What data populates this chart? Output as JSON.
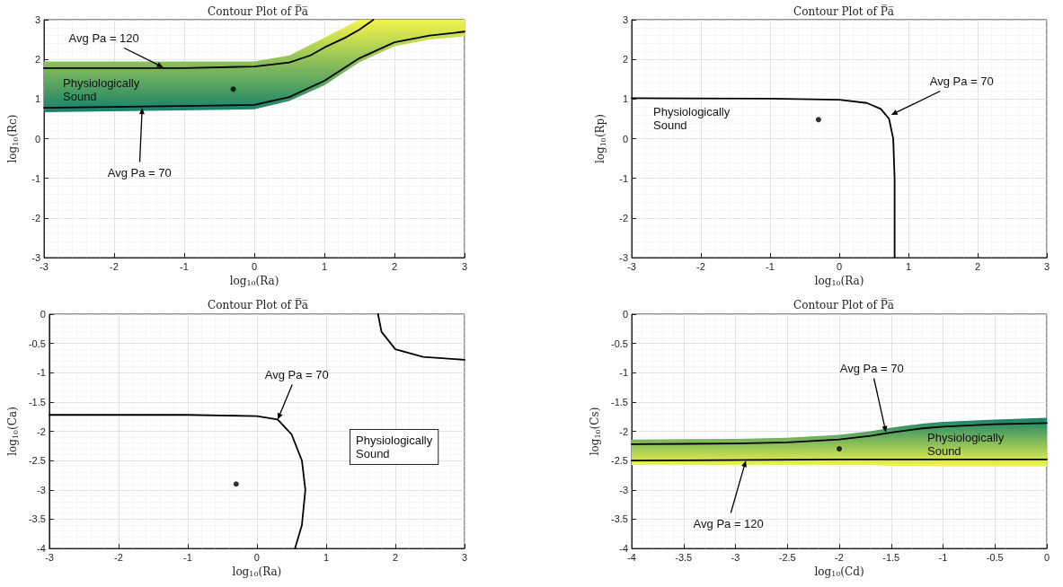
{
  "chart_data": [
    {
      "type": "line",
      "title": "Contour Plot of P̅a̅",
      "xlabel": "log$_{10}$(Ra)",
      "ylabel": "log$_{10}$(Rc)",
      "xlim": [
        -3,
        3
      ],
      "ylim": [
        -3,
        3
      ],
      "xticks": [
        -3,
        -2,
        -1,
        0,
        1,
        2,
        3
      ],
      "yticks": [
        -3,
        -2,
        -1,
        0,
        1,
        2,
        3
      ],
      "grid": true,
      "marker": "none",
      "line_style": "solid",
      "series": [
        {
          "color": "#000000",
          "x": [
            -3,
            -1,
            0,
            0.5,
            0.8,
            1,
            1.3,
            1.5,
            1.7
          ],
          "values": [
            1.78,
            1.78,
            1.82,
            1.92,
            2.1,
            2.3,
            2.55,
            2.75,
            3
          ]
        },
        {
          "color": "#000000",
          "x": [
            -3,
            0,
            0.5,
            1,
            1.5,
            2,
            2.5,
            3
          ],
          "values": [
            0.78,
            0.85,
            1.05,
            1.46,
            2.03,
            2.43,
            2.6,
            2.7
          ],
          "lower": [
            0.67,
            0.74,
            0.95,
            1.35,
            1.93,
            2.33,
            2.5,
            2.58
          ],
          "upper": [
            1.95,
            1.95,
            2.1,
            2.55,
            3,
            3,
            3,
            3
          ]
        },
        {
          "type": "scatter",
          "marker": "circle",
          "color": "#000000",
          "x": [
            -0.3
          ],
          "values": [
            1.25
          ]
        }
      ],
      "annotations": [
        {
          "text": "Avg Pa = 120",
          "x": -1.3,
          "y": 1.8
        },
        "Physiologically Sound",
        {
          "text": "Avg Pa = 70",
          "x": -1.6,
          "y": 0.78
        }
      ]
    },
    {
      "type": "line",
      "title": "Contour Plot of P̅a̅",
      "xlabel": "log$_{10}$(Ra)",
      "ylabel": "log$_{10}$(Rp)",
      "xlim": [
        -3,
        3
      ],
      "ylim": [
        -3,
        3
      ],
      "xticks": [
        -3,
        -2,
        -1,
        0,
        1,
        2,
        3
      ],
      "yticks": [
        -3,
        -2,
        -1,
        0,
        1,
        2,
        3
      ],
      "grid": true,
      "marker": "none",
      "line_style": "solid",
      "series": [
        {
          "color": "#000000",
          "x": [
            -3,
            -1,
            0,
            0.4,
            0.6,
            0.72,
            0.78,
            0.8,
            0.8,
            0.8
          ],
          "values": [
            1.02,
            1.01,
            0.98,
            0.9,
            0.75,
            0.5,
            0,
            -1,
            -2,
            -3
          ]
        },
        {
          "type": "scatter",
          "marker": "circle",
          "color": "#000000",
          "x": [
            -0.3
          ],
          "values": [
            0.48
          ]
        }
      ],
      "annotations": [
        "Physiologically Sound",
        {
          "text": "Avg Pa = 70",
          "x": 0.75,
          "y": 0.6
        }
      ]
    },
    {
      "type": "line",
      "title": "Contour Plot of P̅a̅",
      "xlabel": "log$_{10}$(Ra)",
      "ylabel": "log$_{10}$(Ca)",
      "xlim": [
        -3,
        3
      ],
      "ylim": [
        -4,
        0
      ],
      "xticks": [
        -3,
        -2,
        -1,
        0,
        1,
        2,
        3
      ],
      "yticks": [
        -4,
        -3.5,
        -3,
        -2.5,
        -2,
        -1.5,
        -1,
        -0.5,
        0
      ],
      "grid": true,
      "marker": "none",
      "line_style": "solid",
      "series": [
        {
          "color": "#000000",
          "x": [
            -3,
            -1,
            0,
            0.3,
            0.5,
            0.65,
            0.7,
            0.65,
            0.55
          ],
          "values": [
            -1.72,
            -1.72,
            -1.74,
            -1.8,
            -2.05,
            -2.5,
            -3.0,
            -3.6,
            -4
          ]
        },
        {
          "color": "#000000",
          "x": [
            1.75,
            1.8,
            2.0,
            2.4,
            3
          ],
          "values": [
            0,
            -0.3,
            -0.6,
            -0.73,
            -0.78
          ]
        },
        {
          "type": "scatter",
          "marker": "circle",
          "color": "#000000",
          "x": [
            -0.3
          ],
          "values": [
            -2.9
          ]
        }
      ],
      "annotations": [
        {
          "text": "Avg Pa = 70",
          "x": 0.3,
          "y": -1.8
        },
        "Physiologically Sound"
      ]
    },
    {
      "type": "line",
      "title": "Contour Plot of P̅a̅",
      "xlabel": "log$_{10}$(Cd)",
      "ylabel": "log$_{10}$(Cs)",
      "xlim": [
        -4,
        0
      ],
      "ylim": [
        -4,
        0
      ],
      "xticks": [
        -4,
        -3.5,
        -3,
        -2.5,
        -2,
        -1.5,
        -1,
        -0.5,
        0
      ],
      "yticks": [
        -4,
        -3.5,
        -3,
        -2.5,
        -2,
        -1.5,
        -1,
        -0.5,
        0
      ],
      "grid": true,
      "marker": "none",
      "line_style": "solid",
      "series": [
        {
          "color": "#000000",
          "x": [
            -4,
            -3,
            -2.5,
            -2,
            -1.7,
            -1.5,
            -1.2,
            -1,
            -0.5,
            0
          ],
          "values": [
            -2.22,
            -2.21,
            -2.19,
            -2.14,
            -2.08,
            -2.02,
            -1.95,
            -1.92,
            -1.88,
            -1.86
          ],
          "lower": [
            -2.58,
            -2.58,
            -2.58,
            -2.58,
            -2.58,
            -2.59,
            -2.59,
            -2.6,
            -2.6,
            -2.6
          ],
          "upper": [
            -2.14,
            -2.13,
            -2.11,
            -2.06,
            -2.0,
            -1.94,
            -1.87,
            -1.84,
            -1.8,
            -1.77
          ]
        },
        {
          "color": "#000000",
          "x": [
            -4,
            -2,
            0
          ],
          "values": [
            -2.5,
            -2.48,
            -2.48
          ]
        },
        {
          "type": "scatter",
          "marker": "circle",
          "color": "#000000",
          "x": [
            -2
          ],
          "values": [
            -2.3
          ]
        }
      ],
      "annotations": [
        {
          "text": "Avg Pa = 70",
          "x": -1.55,
          "y": -2.02
        },
        "Physiologically Sound",
        {
          "text": "Avg Pa = 120",
          "x": -2.9,
          "y": -2.5
        }
      ]
    }
  ]
}
